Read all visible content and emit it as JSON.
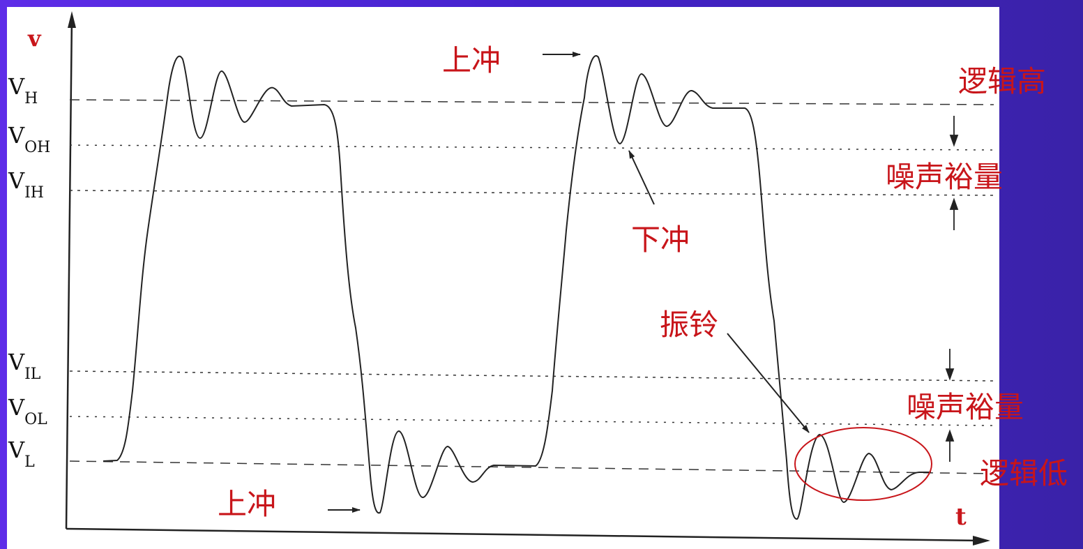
{
  "axes": {
    "y_label": "v",
    "x_label": "t"
  },
  "levels": [
    {
      "main": "V",
      "sub": "H"
    },
    {
      "main": "V",
      "sub": "OH"
    },
    {
      "main": "V",
      "sub": "IH"
    },
    {
      "main": "V",
      "sub": "IL"
    },
    {
      "main": "V",
      "sub": "OL"
    },
    {
      "main": "V",
      "sub": "L"
    }
  ],
  "annotations": {
    "overshoot_top": "上冲",
    "overshoot_bottom": "上冲",
    "undershoot": "下冲",
    "ringing": "振铃"
  },
  "side_labels": {
    "logic_high": "逻辑高",
    "noise_margin_high": "噪声裕量",
    "noise_margin_low": "噪声裕量",
    "logic_low": "逻辑低"
  },
  "colors": {
    "background": "#4b27d6",
    "panel": "#ffffff",
    "annotation": "#c8151a",
    "waveform": "#222222"
  }
}
